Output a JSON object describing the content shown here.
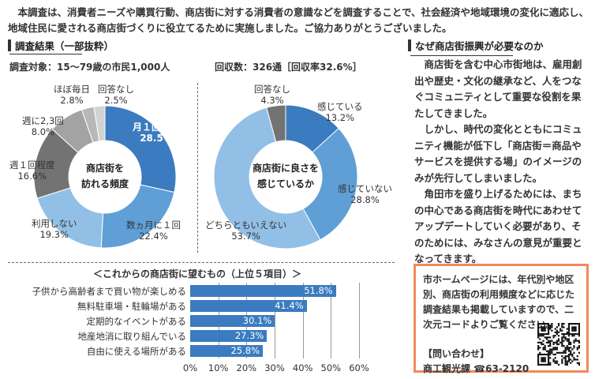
{
  "intro": "本調査は、消費者ニーズや購買行動、商店街に対する消費者の意識などを調査することで、社会経済や地域環境の変化に適応し、地域住民に愛される商店街づくりに役立てるために実施しました。ご協力ありがとうございました。",
  "results": {
    "heading": "調査結果（一部抜粋）",
    "target": "調査対象：15～79歳の市民1,000人",
    "response": "回収数：326通［回収率32.6%］"
  },
  "chart_data": [
    {
      "type": "pie",
      "title": "商店街を訪れる頻度",
      "slices": [
        {
          "label": "月１回程度",
          "value": 28.5,
          "pct": "28.5%",
          "color": "#3b7bc0"
        },
        {
          "label": "数ヵ月に１回",
          "value": 22.4,
          "pct": "22.4%",
          "color": "#5f9fd6"
        },
        {
          "label": "利用しない",
          "value": 19.3,
          "pct": "19.3%",
          "color": "#92bfe6"
        },
        {
          "label": "週１回程度",
          "value": 16.6,
          "pct": "16.6%",
          "color": "#737373"
        },
        {
          "label": "週に2,3回",
          "value": 8.0,
          "pct": "8.0%",
          "color": "#a3a3a3"
        },
        {
          "label": "ほぼ毎日",
          "value": 2.8,
          "pct": "2.8%",
          "color": "#b8b8b8"
        },
        {
          "label": "回答なし",
          "value": 2.5,
          "pct": "2.5%",
          "color": "#d3d3d3"
        }
      ]
    },
    {
      "type": "pie",
      "title": "商店街に良さを感じているか",
      "slices": [
        {
          "label": "感じている",
          "value": 13.2,
          "pct": "13.2%",
          "color": "#3b7bc0"
        },
        {
          "label": "感じていない",
          "value": 28.8,
          "pct": "28.8%",
          "color": "#5f9fd6"
        },
        {
          "label": "どちらともいえない",
          "value": 53.7,
          "pct": "53.7%",
          "color": "#92bfe6"
        },
        {
          "label": "回答なし",
          "value": 4.3,
          "pct": "4.3%",
          "color": "#737373"
        }
      ]
    },
    {
      "type": "bar",
      "title": "＜これからの商店街に望むもの（上位５項目）＞",
      "categories": [
        "子供から高齢者まで買い物が楽しめる",
        "無料駐車場・駐輪場がある",
        "定期的なイベントがある",
        "地産地消に取り組んでいる",
        "自由に使える場所がある"
      ],
      "values": [
        51.8,
        41.4,
        30.1,
        27.3,
        25.8
      ],
      "value_labels": [
        "51.8%",
        "41.4%",
        "30.1%",
        "27.3%",
        "25.8%"
      ],
      "xlim": [
        0,
        60
      ],
      "ticks": [
        "0%",
        "10%",
        "20%",
        "30%",
        "40%",
        "50%",
        "60%"
      ],
      "color": "#3b7bc0",
      "grid": true
    }
  ],
  "why": {
    "heading": "なぜ商店街振興が必要なのか",
    "paragraphs": [
      "商店街を含む中心市街地は、雇用創出や歴史・文化の継承など、人をつなぐコミュニティとして重要な役割を果たしてきました。",
      "しかし、時代の変化とともにコミュニティ機能が低下し「商店街＝商品やサービスを提供する場」のイメージのみが先行してしまいました。",
      "角田市を盛り上げるためには、まちの中心である商店街を時代にあわせてアップデートしていく必要があり、そのためには、みなさんの意見が重要となってきます。"
    ]
  },
  "info": {
    "text": "市ホームページには、年代別や地区別、商店街の利用頻度などに応じた調査結果も掲載していますので、二次元コードよりご覧ください。",
    "contact_label": "【問い合わせ】",
    "contact": "商工観光課 ☎63-2120",
    "border_color": "#f08a5d"
  }
}
